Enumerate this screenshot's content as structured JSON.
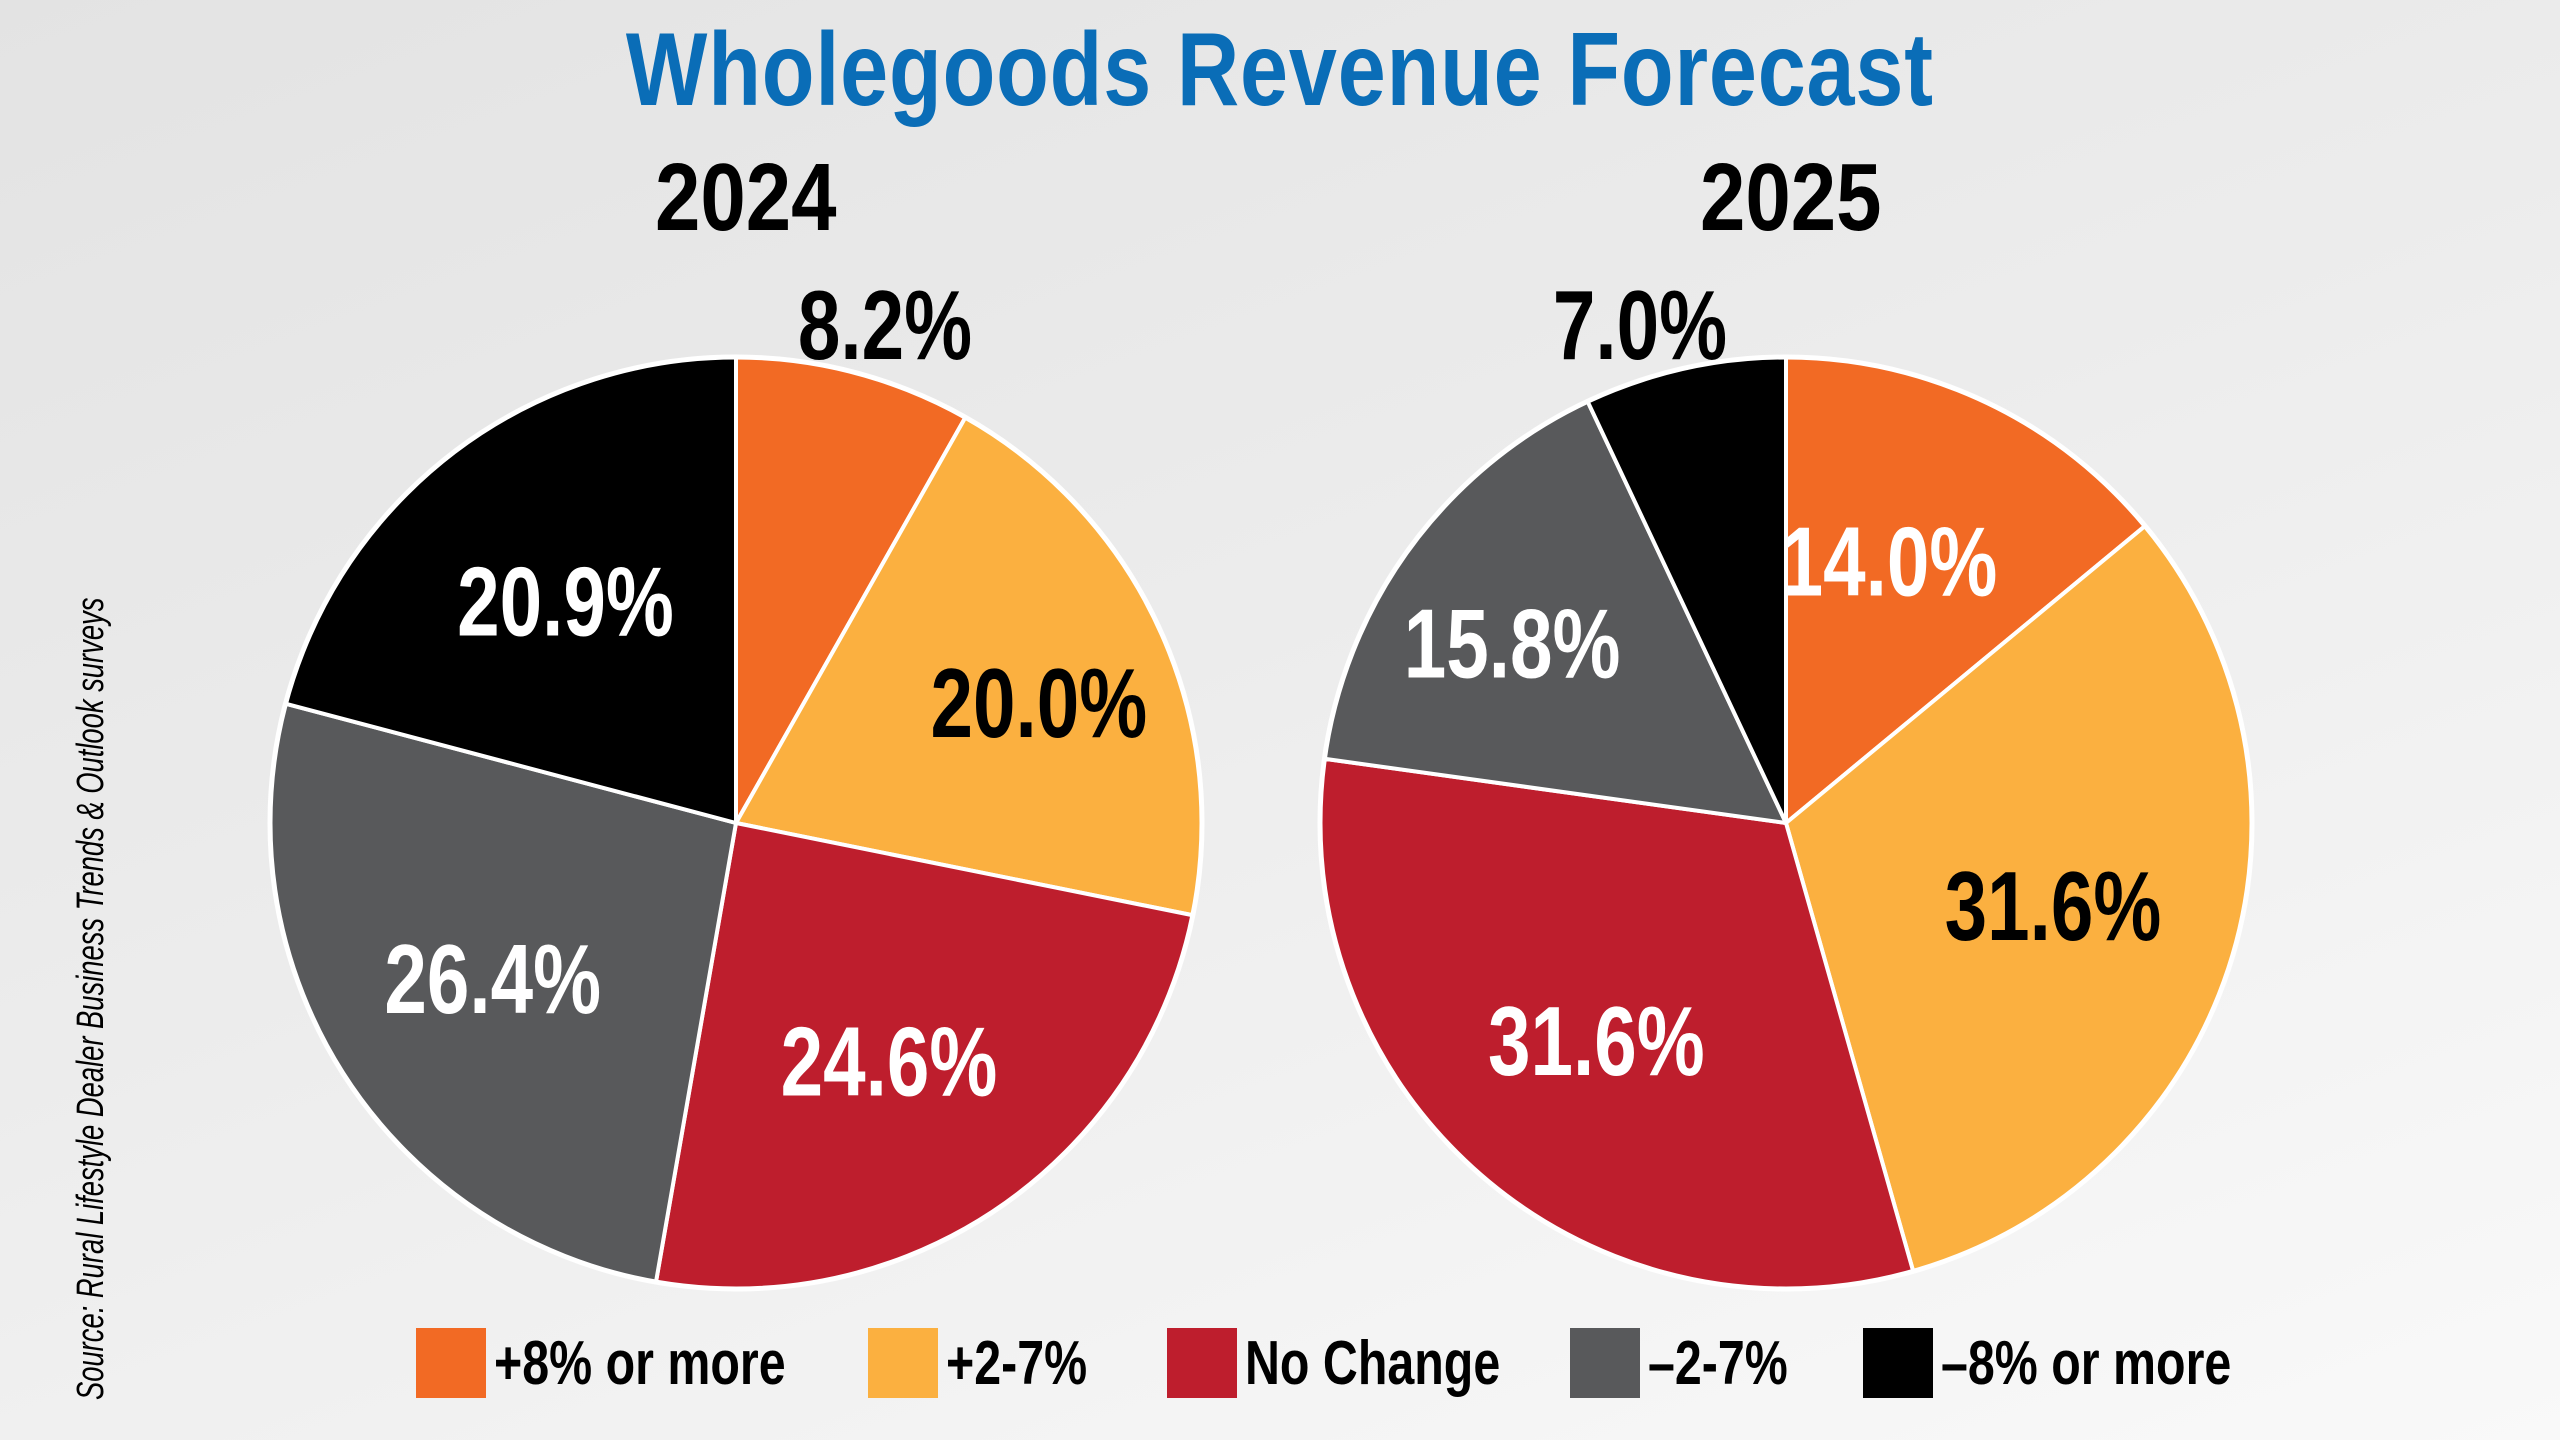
{
  "title": "Wholegoods Revenue Forecast",
  "source_note": "Source: Rural Lifestyle Dealer Business Trends & Outlook surveys",
  "colors": {
    "title": "#0a6db7",
    "background": "#ececec",
    "slice_border": "#ffffff"
  },
  "legend": [
    {
      "label": "+8% or more",
      "color": "#f26a24"
    },
    {
      "label": "+2-7%",
      "color": "#fbb040"
    },
    {
      "label": "No Change",
      "color": "#be1e2d"
    },
    {
      "label": "–2-7%",
      "color": "#58595b"
    },
    {
      "label": "–8% or more",
      "color": "#000000"
    }
  ],
  "chart_data": [
    {
      "type": "pie",
      "title": "2024",
      "categories": [
        "+8% or more",
        "+2-7%",
        "No Change",
        "–2-7%",
        "–8% or more"
      ],
      "values": [
        8.2,
        20.0,
        24.6,
        26.4,
        20.9
      ],
      "labels": [
        "8.2%",
        "20.0%",
        "24.6%",
        "26.4%",
        "20.9%"
      ],
      "colors": [
        "#f26a24",
        "#fbb040",
        "#be1e2d",
        "#58595b",
        "#000000"
      ],
      "label_colors": [
        "#000000",
        "#000000",
        "#ffffff",
        "#ffffff",
        "#ffffff"
      ],
      "label_outside": [
        true,
        false,
        false,
        false,
        false
      ],
      "start": "12 o'clock",
      "direction": "clockwise"
    },
    {
      "type": "pie",
      "title": "2025",
      "categories": [
        "+8% or more",
        "+2-7%",
        "No Change",
        "–2-7%",
        "–8% or more"
      ],
      "values": [
        14.0,
        31.6,
        31.6,
        15.8,
        7.0
      ],
      "labels": [
        "14.0%",
        "31.6%",
        "31.6%",
        "15.8%",
        "7.0%"
      ],
      "colors": [
        "#f26a24",
        "#fbb040",
        "#be1e2d",
        "#58595b",
        "#000000"
      ],
      "label_colors": [
        "#ffffff",
        "#000000",
        "#ffffff",
        "#ffffff",
        "#000000"
      ],
      "label_outside": [
        false,
        false,
        false,
        false,
        true
      ],
      "start": "12 o'clock",
      "direction": "clockwise"
    }
  ]
}
